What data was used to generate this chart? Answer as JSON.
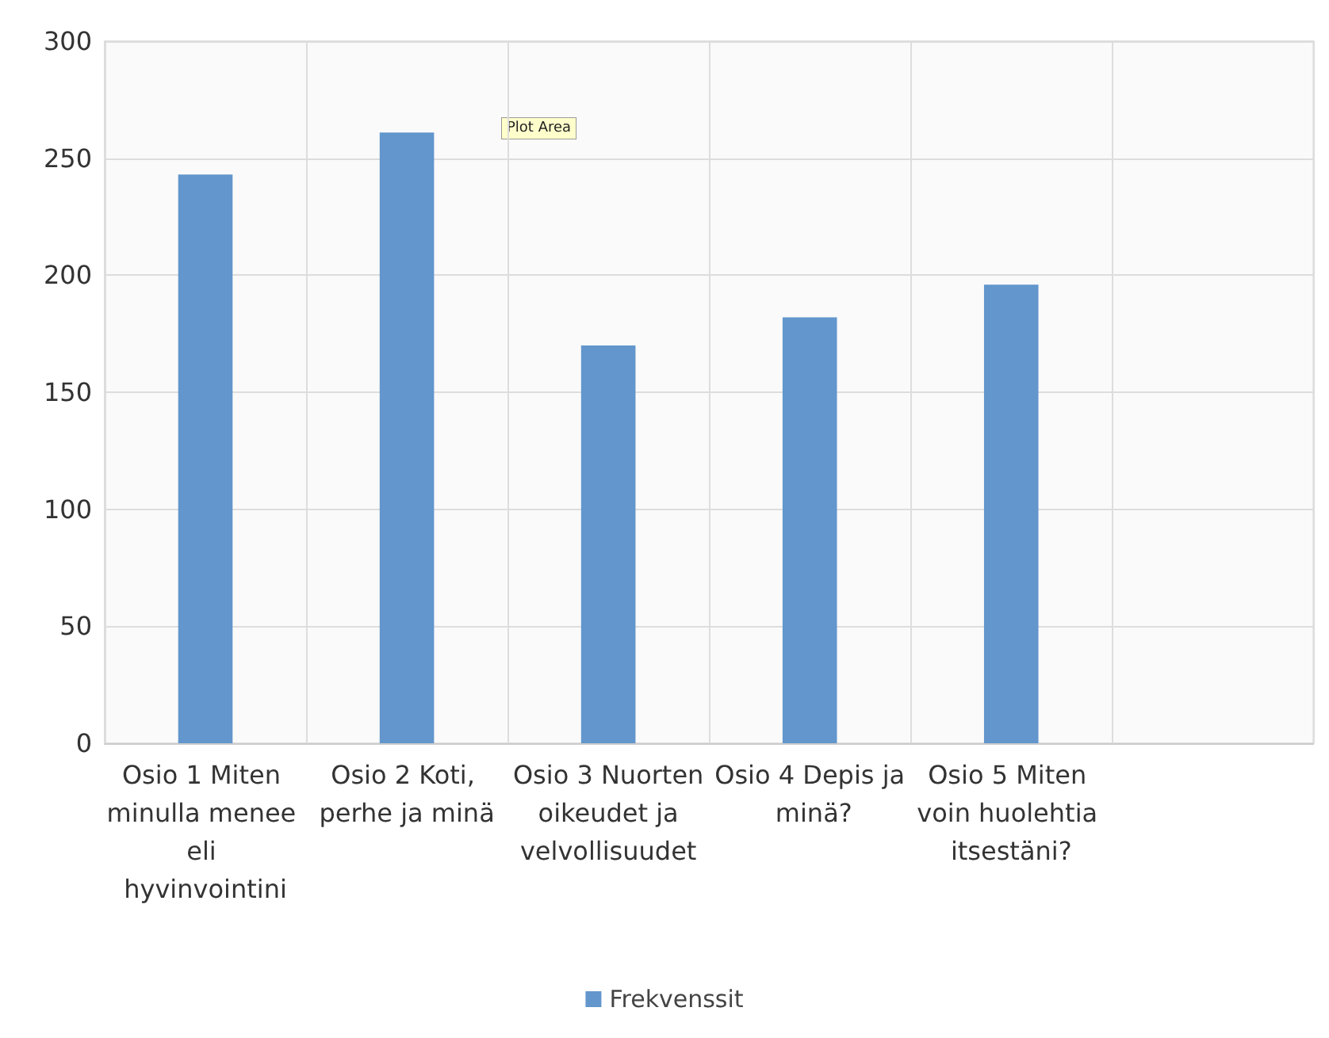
{
  "chart_data": {
    "type": "bar",
    "categories": [
      "Osio 1 Miten minulla menee eli hyvinvointini",
      "Osio 2 Koti, perhe ja minä",
      "Osio 3 Nuorten oikeudet ja velvollisuudet",
      "Osio 4 Depis ja minä?",
      "Osio 5 Miten voin huolehtia itsestäni?",
      null
    ],
    "series": [
      {
        "name": "Frekvenssit",
        "color": "#6296cc",
        "values": [
          243,
          261,
          170,
          182,
          196,
          null
        ]
      }
    ],
    "ylim": [
      0,
      300
    ],
    "yticks": [
      0,
      50,
      100,
      150,
      200,
      250,
      300
    ],
    "grid": true,
    "legend": "bottom",
    "annotations": [
      "Plot Area"
    ]
  }
}
